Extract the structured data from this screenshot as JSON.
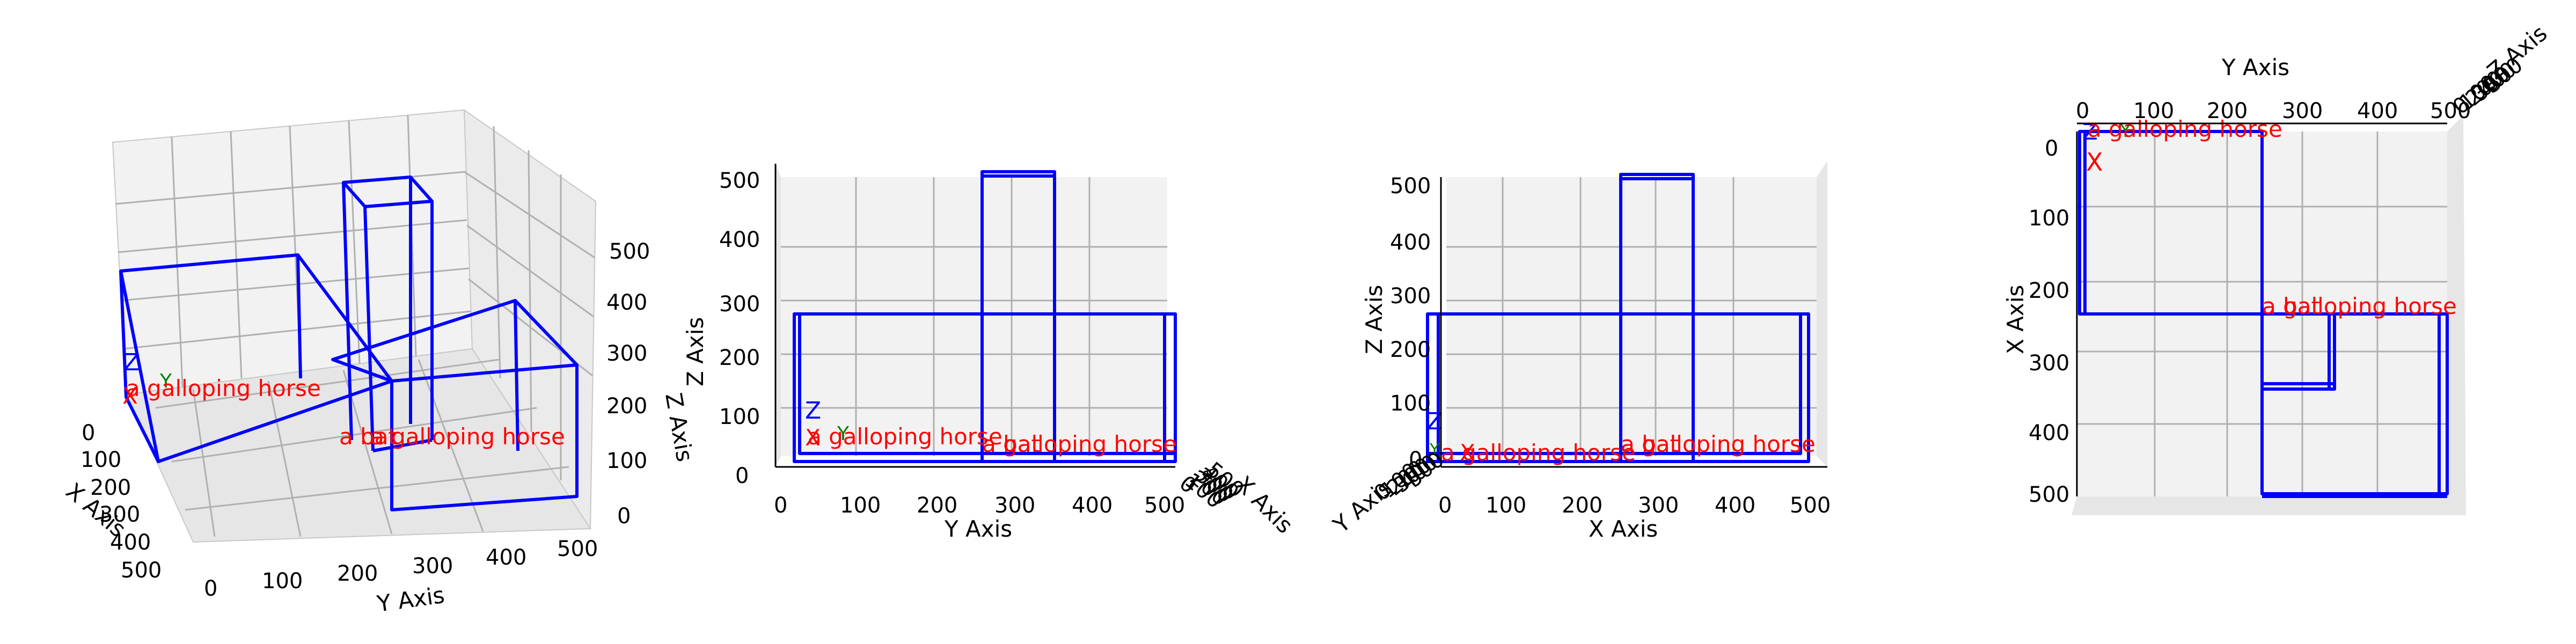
{
  "colors": {
    "boxes": "#0000ff",
    "labels": "#ff0000",
    "axis_x": "#ff0000",
    "axis_y": "#008000",
    "axis_z": "#0000ff",
    "pane": "#f2f2f2",
    "grid": "#b0b0b0"
  },
  "chart_data": [
    {
      "type": "3d-boxes",
      "view": "perspective",
      "xlabel": "X Axis",
      "ylabel": "Y Axis",
      "zlabel": "Z Axis",
      "ticks_x": [
        "0",
        "100",
        "200",
        "300",
        "400",
        "500"
      ],
      "ticks_y": [
        "0",
        "100",
        "200",
        "300",
        "400",
        "500"
      ],
      "ticks_z": [
        "0",
        "100",
        "200",
        "300",
        "400",
        "500"
      ],
      "axis_markers": [
        "X",
        "Y",
        "Z"
      ],
      "labels": [
        "a galloping horse",
        "a galloping horse",
        "a bat"
      ]
    },
    {
      "type": "3d-boxes",
      "view": "front (Y–Z)",
      "xlabel": "Y Axis",
      "zlabel": "Z Axis",
      "depthlabel": "X Axis",
      "ticks_h": [
        "0",
        "100",
        "200",
        "300",
        "400",
        "500"
      ],
      "ticks_v": [
        "0",
        "100",
        "200",
        "300",
        "400",
        "500"
      ],
      "ticks_depth": [
        "0",
        "100",
        "200",
        "300",
        "400",
        "500"
      ],
      "axis_markers": [
        "X",
        "Y",
        "Z"
      ],
      "labels": [
        "a galloping horse",
        "a galloping horse",
        "a bat"
      ]
    },
    {
      "type": "3d-boxes",
      "view": "side (X–Z)",
      "xlabel": "X Axis",
      "zlabel": "Z Axis",
      "depthlabel": "Y Axis",
      "ticks_h": [
        "0",
        "100",
        "200",
        "300",
        "400",
        "500"
      ],
      "ticks_v": [
        "0",
        "100",
        "200",
        "300",
        "400",
        "500"
      ],
      "ticks_depth": [
        "0",
        "100",
        "200",
        "300",
        "400",
        "500"
      ],
      "axis_markers": [
        "X",
        "Y",
        "Z"
      ],
      "labels": [
        "a galloping horse",
        "a galloping horse",
        "a bat"
      ]
    },
    {
      "type": "3d-boxes",
      "view": "top (Y–X)",
      "xlabel": "Y Axis",
      "ylabel": "X Axis",
      "depthlabel": "Z Axis",
      "ticks_h": [
        "0",
        "100",
        "200",
        "300",
        "400",
        "500"
      ],
      "ticks_v": [
        "0",
        "100",
        "200",
        "300",
        "400",
        "500"
      ],
      "ticks_depth": [
        "0",
        "100",
        "200",
        "300",
        "400",
        "500"
      ],
      "axis_markers": [
        "X",
        "Y",
        "Z"
      ],
      "labels": [
        "a galloping horse",
        "a galloping horse",
        "a bat"
      ]
    }
  ]
}
